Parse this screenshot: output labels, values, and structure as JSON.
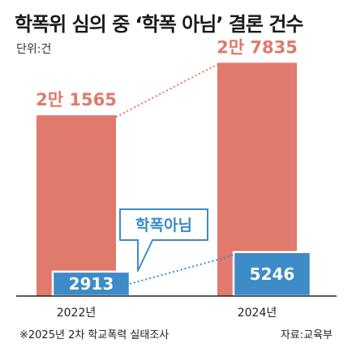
{
  "title": "학폭위 심의 중 ‘학폭 아님’ 결론 건수",
  "unit": "단위:건",
  "footnote": "※2025년 2차 학교폭력 실태조사",
  "source": "자료:교육부",
  "colors": {
    "total_bar": "#e07a6c",
    "total_label": "#e07a6c",
    "sub_bar": "#3d8bc7",
    "sub_border": "#ffffff",
    "callout_text": "#3d8bc7",
    "axis": "#222222"
  },
  "chart_data": {
    "type": "bar",
    "categories": [
      "2022년",
      "2024년"
    ],
    "series": [
      {
        "values": [
          21565,
          27835
        ],
        "labels": [
          "2만 1565",
          "2만 7835"
        ]
      },
      {
        "name": "학폭아님",
        "values": [
          2913,
          5246
        ],
        "labels": [
          "2913",
          "5246"
        ]
      }
    ],
    "callout": "학폭아님",
    "ylim": [
      0,
      30000
    ],
    "grid": false,
    "legend": "none"
  }
}
